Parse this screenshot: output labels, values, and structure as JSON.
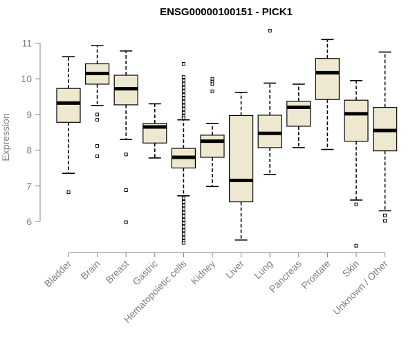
{
  "chart_data": {
    "type": "boxplot",
    "title": "ENSG00000100151 - PICK1",
    "xlabel": "",
    "ylabel": "Expression",
    "ylim": [
      5.0,
      11.5
    ],
    "yticks": [
      6,
      7,
      8,
      9,
      10,
      11
    ],
    "colors": {
      "box_fill": "#efe8d0",
      "median": "#000000",
      "axis": "#808080"
    },
    "categories": [
      "Bladder",
      "Brain",
      "Breast",
      "Gastric",
      "Hematopoietic cells",
      "Kidney",
      "Liver",
      "Lung",
      "Pancreas",
      "Prostate",
      "Skin",
      "Unknown / Other"
    ],
    "boxes": [
      {
        "name": "Bladder",
        "q1": 8.78,
        "median": 9.32,
        "q3": 9.73,
        "whisker_low": 7.35,
        "whisker_high": 10.62,
        "outliers": [
          6.82
        ]
      },
      {
        "name": "Brain",
        "q1": 9.85,
        "median": 10.15,
        "q3": 10.42,
        "whisker_low": 9.25,
        "whisker_high": 10.93,
        "outliers": [
          9.0,
          8.85,
          8.12,
          7.83
        ]
      },
      {
        "name": "Breast",
        "q1": 9.27,
        "median": 9.72,
        "q3": 10.1,
        "whisker_low": 8.3,
        "whisker_high": 10.78,
        "outliers": [
          7.88,
          6.88,
          5.98
        ]
      },
      {
        "name": "Gastric",
        "q1": 8.2,
        "median": 8.65,
        "q3": 8.75,
        "whisker_low": 7.78,
        "whisker_high": 9.3,
        "outliers": []
      },
      {
        "name": "Hematopoietic cells",
        "q1": 7.5,
        "median": 7.8,
        "q3": 8.05,
        "whisker_low": 6.72,
        "whisker_high": 8.85,
        "outliers": [
          10.42,
          10.05,
          9.95,
          9.85,
          9.75,
          9.65,
          9.55,
          9.45,
          9.35,
          9.25,
          9.15,
          9.05,
          8.95,
          8.9,
          6.65,
          6.55,
          6.45,
          6.35,
          6.25,
          6.15,
          6.05,
          5.95,
          5.85,
          5.75,
          5.65,
          5.55,
          5.45,
          5.4
        ]
      },
      {
        "name": "Kidney",
        "q1": 7.8,
        "median": 8.25,
        "q3": 8.42,
        "whisker_low": 6.98,
        "whisker_high": 8.75,
        "outliers": [
          10.0,
          9.92,
          9.85,
          9.65
        ]
      },
      {
        "name": "Liver",
        "q1": 6.55,
        "median": 7.15,
        "q3": 8.97,
        "whisker_low": 5.48,
        "whisker_high": 9.62,
        "outliers": []
      },
      {
        "name": "Lung",
        "q1": 8.07,
        "median": 8.47,
        "q3": 8.98,
        "whisker_low": 7.32,
        "whisker_high": 9.88,
        "outliers": [
          11.35
        ]
      },
      {
        "name": "Pancreas",
        "q1": 8.67,
        "median": 9.2,
        "q3": 9.37,
        "whisker_low": 8.07,
        "whisker_high": 9.85,
        "outliers": []
      },
      {
        "name": "Prostate",
        "q1": 9.42,
        "median": 10.17,
        "q3": 10.57,
        "whisker_low": 8.02,
        "whisker_high": 11.1,
        "outliers": []
      },
      {
        "name": "Skin",
        "q1": 8.25,
        "median": 9.02,
        "q3": 9.4,
        "whisker_low": 6.6,
        "whisker_high": 9.95,
        "outliers": [
          6.48,
          5.32
        ]
      },
      {
        "name": "Unknown / Other",
        "q1": 7.98,
        "median": 8.55,
        "q3": 9.2,
        "whisker_low": 6.3,
        "whisker_high": 10.75,
        "outliers": [
          6.17,
          6.02
        ]
      }
    ]
  }
}
